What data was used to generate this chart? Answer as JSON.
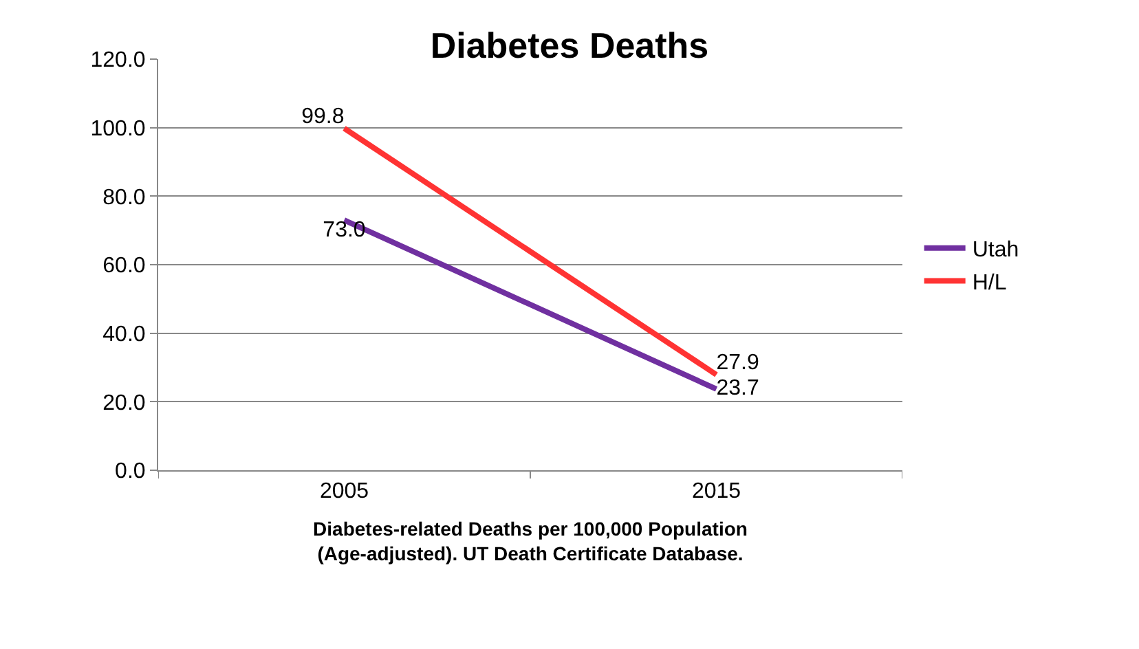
{
  "chart_data": {
    "type": "line",
    "title": "Diabetes Deaths",
    "xlabel": "Diabetes-related Deaths per 100,000 Population\n(Age-adjusted). UT Death Certificate Database.",
    "categories": [
      "2005",
      "2015"
    ],
    "series": [
      {
        "name": "Utah",
        "color": "#7030a0",
        "values": [
          73.0,
          23.7
        ],
        "value_labels": [
          "73.0",
          "23.7"
        ]
      },
      {
        "name": "H/L",
        "color": "#ff3333",
        "values": [
          99.8,
          27.9
        ],
        "value_labels": [
          "99.8",
          "27.9"
        ]
      }
    ],
    "ylim": [
      0,
      120
    ],
    "yticks": [
      {
        "value": 0,
        "label": "0.0"
      },
      {
        "value": 20,
        "label": "20.0"
      },
      {
        "value": 40,
        "label": "40.0"
      },
      {
        "value": 60,
        "label": "60.0"
      },
      {
        "value": 80,
        "label": "80.0"
      },
      {
        "value": 100,
        "label": "100.0"
      },
      {
        "value": 120,
        "label": "120.0"
      }
    ],
    "grid": "y",
    "legend": "right",
    "marker": "none",
    "line_style": "solid"
  }
}
